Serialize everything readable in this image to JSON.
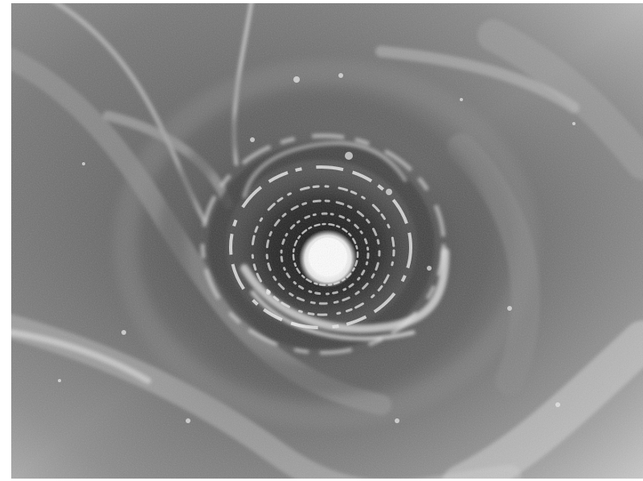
{
  "image": {
    "subject": "grayscale-vortex-tunnel",
    "palette": {
      "border": "#ffffff",
      "deep": "#1c1c1c",
      "mid": "#6e6e6e",
      "light": "#cfcfcf",
      "highlight": "#f4f4f4"
    }
  }
}
